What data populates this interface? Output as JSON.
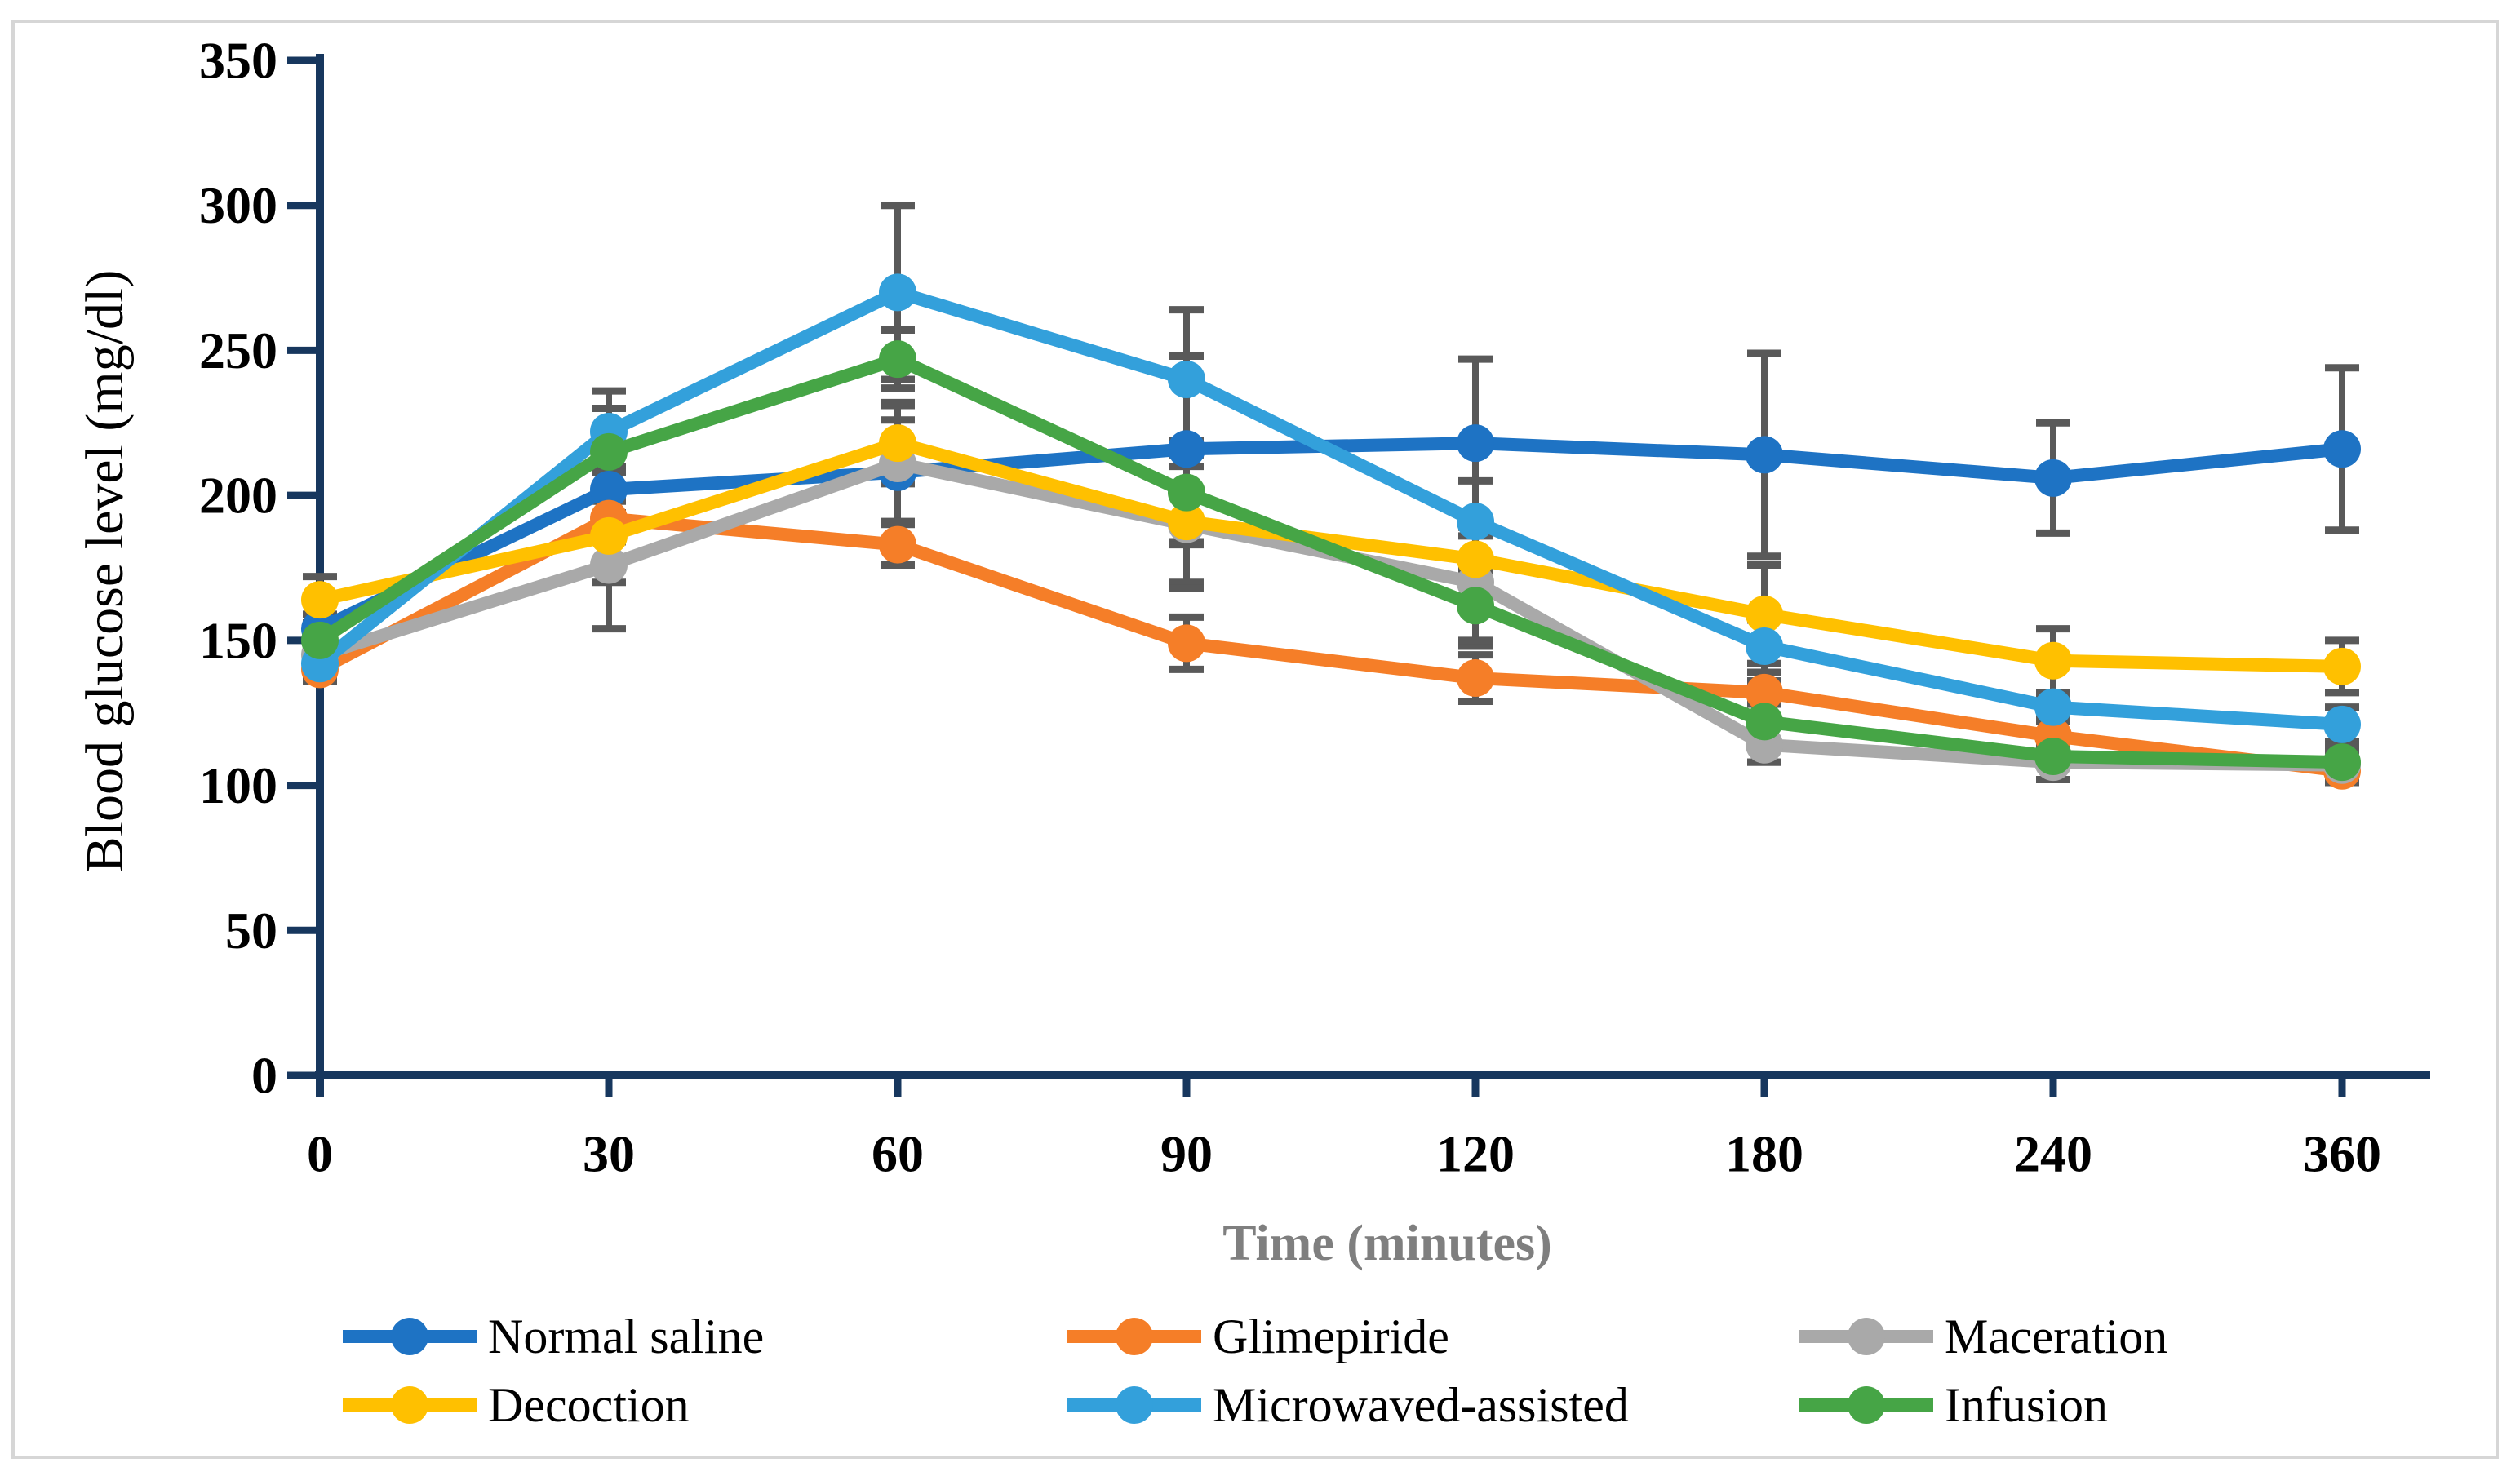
{
  "figure": {
    "background": "#FFFFFF",
    "border_color": "#D6D6D6"
  },
  "chart_data": {
    "type": "line",
    "title": "",
    "xlabel": "Time (minutes)",
    "ylabel": "Blood glucose level (mg/dl)",
    "categories": [
      0,
      30,
      60,
      90,
      120,
      180,
      240,
      360
    ],
    "x_tick_labels": [
      "0",
      "30",
      "60",
      "90",
      "120",
      "180",
      "240",
      "360"
    ],
    "y_ticks": [
      0,
      50,
      100,
      150,
      200,
      250,
      300,
      350
    ],
    "ylim": [
      0,
      350
    ],
    "grid": false,
    "legend_position": "bottom",
    "error_bars": true,
    "axis_color": "#17375E",
    "error_bar_color": "#595959",
    "xlabel_color": "#7F7F7F",
    "series": [
      {
        "name": "Normal saline",
        "color": "#1E73C4",
        "values": [
          154,
          202,
          208,
          216,
          218,
          214,
          206,
          216
        ],
        "errors": [
          5,
          8,
          18,
          32,
          29,
          35,
          19,
          28
        ]
      },
      {
        "name": "Glimepiride",
        "color": "#F57E28",
        "values": [
          140,
          192,
          183,
          149,
          137,
          132,
          117,
          105
        ],
        "errors": [
          4,
          8,
          7,
          9,
          8,
          4,
          5,
          4
        ]
      },
      {
        "name": "Maceration",
        "color": "#A9A9A9",
        "values": [
          145,
          176,
          211,
          190,
          170,
          114,
          108,
          107
        ],
        "errors": [
          6,
          22,
          20,
          20,
          22,
          6,
          6,
          5
        ]
      },
      {
        "name": "Decoction",
        "color": "#FFC000",
        "values": [
          164,
          186,
          218,
          191,
          178,
          159,
          143,
          141
        ],
        "errors": [
          8,
          16,
          14,
          23,
          8,
          17,
          11,
          9
        ]
      },
      {
        "name": "Microwaved-assisted",
        "color": "#33A0DB",
        "values": [
          142,
          222,
          270,
          240,
          191,
          148,
          127,
          121
        ],
        "errors": [
          4,
          14,
          30,
          24,
          14,
          9,
          4,
          6
        ]
      },
      {
        "name": "Infusion",
        "color": "#46A546",
        "values": [
          150,
          215,
          247,
          201,
          162,
          122,
          110,
          108
        ],
        "errors": [
          4,
          15,
          10,
          18,
          12,
          14,
          8,
          6
        ]
      }
    ]
  }
}
